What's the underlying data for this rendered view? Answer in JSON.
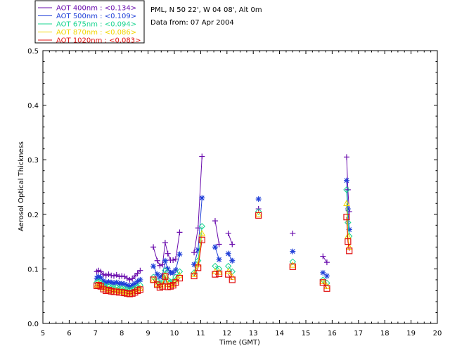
{
  "chart_data": {
    "type": "line",
    "title": "",
    "info_lines": [
      "PML, N 50 22', W 04 08', Alt 0m",
      "Data from: 07 Apr 2004"
    ],
    "xlabel": "Time (GMT)",
    "ylabel": "Aerosol Optical Thickness",
    "xlim": [
      5,
      20
    ],
    "ylim": [
      0.0,
      0.5
    ],
    "xticks": [
      "5",
      "6",
      "7",
      "8",
      "9",
      "10",
      "11",
      "12",
      "13",
      "14",
      "15",
      "16",
      "17",
      "18",
      "19",
      "20"
    ],
    "yticks": [
      "0.0",
      "0.1",
      "0.2",
      "0.3",
      "0.4",
      "0.5"
    ],
    "grid": false,
    "legend_position": "top-left",
    "series": [
      {
        "name": "AOT  400nm : <0.134>",
        "color": "#6a0dad",
        "marker": "plus",
        "segments": [
          [
            [
              7.05,
              0.095
            ],
            [
              7.12,
              0.097
            ],
            [
              7.2,
              0.095
            ],
            [
              7.3,
              0.09
            ],
            [
              7.4,
              0.088
            ],
            [
              7.5,
              0.09
            ],
            [
              7.6,
              0.088
            ],
            [
              7.7,
              0.087
            ],
            [
              7.8,
              0.089
            ],
            [
              7.9,
              0.086
            ],
            [
              8.0,
              0.087
            ],
            [
              8.1,
              0.086
            ],
            [
              8.2,
              0.083
            ],
            [
              8.3,
              0.08
            ],
            [
              8.4,
              0.082
            ],
            [
              8.5,
              0.087
            ],
            [
              8.6,
              0.092
            ],
            [
              8.7,
              0.097
            ]
          ],
          [
            [
              9.2,
              0.14
            ],
            [
              9.35,
              0.115
            ],
            [
              9.45,
              0.106
            ],
            [
              9.55,
              0.108
            ],
            [
              9.65,
              0.148
            ],
            [
              9.75,
              0.128
            ],
            [
              9.85,
              0.116
            ],
            [
              9.95,
              0.116
            ],
            [
              10.05,
              0.118
            ],
            [
              10.2,
              0.167
            ]
          ],
          [
            [
              10.75,
              0.13
            ],
            [
              10.9,
              0.175
            ],
            [
              11.05,
              0.306
            ]
          ],
          [
            [
              11.55,
              0.188
            ],
            [
              11.7,
              0.145
            ]
          ],
          [
            [
              12.05,
              0.165
            ],
            [
              12.2,
              0.145
            ]
          ],
          [
            [
              13.2,
              0.21
            ]
          ],
          [
            [
              14.5,
              0.165
            ]
          ],
          [
            [
              15.65,
              0.123
            ],
            [
              15.8,
              0.112
            ]
          ],
          [
            [
              16.55,
              0.305
            ],
            [
              16.6,
              0.245
            ],
            [
              16.65,
              0.205
            ]
          ]
        ]
      },
      {
        "name": "AOT  500nm : <0.109>",
        "color": "#1f3fd8",
        "marker": "star",
        "segments": [
          [
            [
              7.05,
              0.083
            ],
            [
              7.12,
              0.086
            ],
            [
              7.2,
              0.084
            ],
            [
              7.3,
              0.078
            ],
            [
              7.4,
              0.075
            ],
            [
              7.5,
              0.076
            ],
            [
              7.6,
              0.075
            ],
            [
              7.7,
              0.074
            ],
            [
              7.8,
              0.075
            ],
            [
              7.9,
              0.073
            ],
            [
              8.0,
              0.073
            ],
            [
              8.1,
              0.072
            ],
            [
              8.2,
              0.07
            ],
            [
              8.3,
              0.068
            ],
            [
              8.4,
              0.07
            ],
            [
              8.5,
              0.073
            ],
            [
              8.6,
              0.077
            ],
            [
              8.7,
              0.08
            ]
          ],
          [
            [
              9.2,
              0.105
            ],
            [
              9.35,
              0.09
            ],
            [
              9.45,
              0.085
            ],
            [
              9.55,
              0.088
            ],
            [
              9.65,
              0.115
            ],
            [
              9.75,
              0.1
            ],
            [
              9.85,
              0.093
            ],
            [
              9.95,
              0.093
            ],
            [
              10.05,
              0.098
            ],
            [
              10.2,
              0.127
            ]
          ],
          [
            [
              10.75,
              0.108
            ],
            [
              10.9,
              0.135
            ],
            [
              11.05,
              0.23
            ]
          ],
          [
            [
              11.55,
              0.14
            ],
            [
              11.7,
              0.117
            ]
          ],
          [
            [
              12.05,
              0.128
            ],
            [
              12.2,
              0.115
            ]
          ],
          [
            [
              13.2,
              0.228
            ]
          ],
          [
            [
              14.5,
              0.132
            ]
          ],
          [
            [
              15.65,
              0.093
            ],
            [
              15.8,
              0.087
            ]
          ],
          [
            [
              16.55,
              0.262
            ],
            [
              16.6,
              0.21
            ],
            [
              16.65,
              0.172
            ]
          ]
        ]
      },
      {
        "name": "AOT  675nm : <0.094>",
        "color": "#17d48f",
        "marker": "diamond",
        "segments": [
          [
            [
              7.05,
              0.075
            ],
            [
              7.12,
              0.077
            ],
            [
              7.2,
              0.075
            ],
            [
              7.3,
              0.07
            ],
            [
              7.4,
              0.067
            ],
            [
              7.5,
              0.068
            ],
            [
              7.6,
              0.066
            ],
            [
              7.7,
              0.065
            ],
            [
              7.8,
              0.066
            ],
            [
              7.9,
              0.064
            ],
            [
              8.0,
              0.064
            ],
            [
              8.1,
              0.063
            ],
            [
              8.2,
              0.062
            ],
            [
              8.3,
              0.061
            ],
            [
              8.4,
              0.062
            ],
            [
              8.5,
              0.064
            ],
            [
              8.6,
              0.067
            ],
            [
              8.7,
              0.07
            ]
          ],
          [
            [
              9.2,
              0.085
            ],
            [
              9.35,
              0.077
            ],
            [
              9.45,
              0.074
            ],
            [
              9.55,
              0.076
            ],
            [
              9.65,
              0.097
            ],
            [
              9.75,
              0.08
            ],
            [
              9.85,
              0.076
            ],
            [
              9.95,
              0.077
            ],
            [
              10.05,
              0.085
            ],
            [
              10.2,
              0.095
            ]
          ],
          [
            [
              10.75,
              0.093
            ],
            [
              10.9,
              0.115
            ],
            [
              11.05,
              0.178
            ]
          ],
          [
            [
              11.55,
              0.105
            ],
            [
              11.7,
              0.1
            ]
          ],
          [
            [
              12.05,
              0.105
            ],
            [
              12.2,
              0.095
            ]
          ],
          [
            [
              13.2,
              0.205
            ]
          ],
          [
            [
              14.5,
              0.113
            ]
          ],
          [
            [
              15.65,
              0.08
            ],
            [
              15.8,
              0.074
            ]
          ],
          [
            [
              16.55,
              0.245
            ],
            [
              16.6,
              0.185
            ],
            [
              16.65,
              0.16
            ]
          ]
        ]
      },
      {
        "name": "AOT  870nm : <0.086>",
        "color": "#f2d500",
        "marker": "triangle",
        "segments": [
          [
            [
              7.05,
              0.07
            ],
            [
              7.12,
              0.072
            ],
            [
              7.2,
              0.07
            ],
            [
              7.3,
              0.065
            ],
            [
              7.4,
              0.062
            ],
            [
              7.5,
              0.063
            ],
            [
              7.6,
              0.061
            ],
            [
              7.7,
              0.06
            ],
            [
              7.8,
              0.06
            ],
            [
              7.9,
              0.059
            ],
            [
              8.0,
              0.059
            ],
            [
              8.1,
              0.058
            ],
            [
              8.2,
              0.057
            ],
            [
              8.3,
              0.056
            ],
            [
              8.4,
              0.057
            ],
            [
              8.5,
              0.059
            ],
            [
              8.6,
              0.062
            ],
            [
              8.7,
              0.064
            ]
          ],
          [
            [
              9.2,
              0.08
            ],
            [
              9.35,
              0.072
            ],
            [
              9.45,
              0.069
            ],
            [
              9.55,
              0.071
            ],
            [
              9.65,
              0.088
            ],
            [
              9.75,
              0.072
            ],
            [
              9.85,
              0.07
            ],
            [
              9.95,
              0.072
            ],
            [
              10.05,
              0.078
            ],
            [
              10.2,
              0.088
            ]
          ],
          [
            [
              10.75,
              0.09
            ],
            [
              10.9,
              0.108
            ],
            [
              11.05,
              0.165
            ]
          ],
          [
            [
              11.55,
              0.095
            ],
            [
              11.7,
              0.094
            ]
          ],
          [
            [
              12.05,
              0.095
            ],
            [
              12.2,
              0.085
            ]
          ],
          [
            [
              13.2,
              0.2
            ]
          ],
          [
            [
              14.5,
              0.107
            ]
          ],
          [
            [
              15.65,
              0.077
            ],
            [
              15.8,
              0.068
            ]
          ],
          [
            [
              16.55,
              0.22
            ],
            [
              16.6,
              0.16
            ],
            [
              16.65,
              0.14
            ]
          ]
        ]
      },
      {
        "name": "AOT 1020nm : <0.083>",
        "color": "#e01010",
        "marker": "square",
        "segments": [
          [
            [
              7.05,
              0.069
            ],
            [
              7.12,
              0.07
            ],
            [
              7.2,
              0.068
            ],
            [
              7.3,
              0.063
            ],
            [
              7.4,
              0.06
            ],
            [
              7.5,
              0.061
            ],
            [
              7.6,
              0.059
            ],
            [
              7.7,
              0.058
            ],
            [
              7.8,
              0.058
            ],
            [
              7.9,
              0.057
            ],
            [
              8.0,
              0.057
            ],
            [
              8.1,
              0.056
            ],
            [
              8.2,
              0.055
            ],
            [
              8.3,
              0.054
            ],
            [
              8.4,
              0.055
            ],
            [
              8.5,
              0.057
            ],
            [
              8.6,
              0.06
            ],
            [
              8.7,
              0.062
            ]
          ],
          [
            [
              9.2,
              0.08
            ],
            [
              9.35,
              0.071
            ],
            [
              9.45,
              0.066
            ],
            [
              9.55,
              0.068
            ],
            [
              9.65,
              0.086
            ],
            [
              9.75,
              0.067
            ],
            [
              9.85,
              0.068
            ],
            [
              9.95,
              0.07
            ],
            [
              10.05,
              0.075
            ],
            [
              10.2,
              0.083
            ]
          ],
          [
            [
              10.75,
              0.087
            ],
            [
              10.9,
              0.102
            ],
            [
              11.05,
              0.153
            ]
          ],
          [
            [
              11.55,
              0.09
            ],
            [
              11.7,
              0.091
            ]
          ],
          [
            [
              12.05,
              0.09
            ],
            [
              12.2,
              0.08
            ]
          ],
          [
            [
              13.2,
              0.198
            ]
          ],
          [
            [
              14.5,
              0.104
            ]
          ],
          [
            [
              15.65,
              0.075
            ],
            [
              15.8,
              0.064
            ]
          ],
          [
            [
              16.55,
              0.195
            ],
            [
              16.6,
              0.15
            ],
            [
              16.65,
              0.133
            ]
          ]
        ]
      }
    ]
  }
}
